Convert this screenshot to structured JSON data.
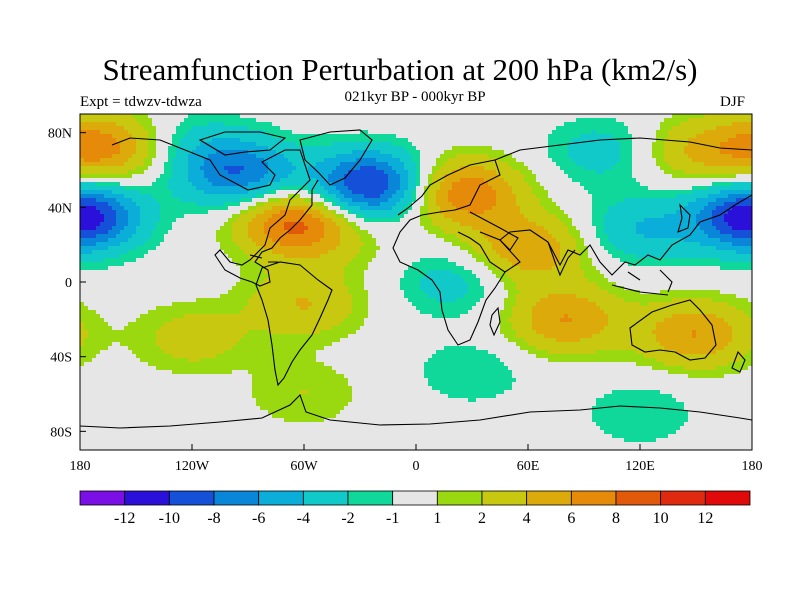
{
  "title": "Streamfunction Perturbation at 200 hPa (km2/s)",
  "subtitle": "021kyr BP - 000kyr BP",
  "left_label": "Expt = tdwzv-tdwza",
  "right_label": "DJF",
  "axes": {
    "lat_ticks": [
      "80N",
      "40N",
      "0",
      "40S",
      "80S"
    ],
    "lon_ticks": [
      "180",
      "120W",
      "60W",
      "0",
      "60E",
      "120E",
      "180"
    ]
  },
  "colorbar": {
    "labels": [
      "-12",
      "-10",
      "-8",
      "-6",
      "-4",
      "-2",
      "-1",
      "1",
      "2",
      "4",
      "6",
      "8",
      "10",
      "12"
    ],
    "colors": [
      "#7a10e6",
      "#2a10d8",
      "#1550d8",
      "#0a86d8",
      "#0aaed8",
      "#11c9c9",
      "#10d89a",
      "#e6e6e6",
      "#9ad810",
      "#c8c810",
      "#dcaa0a",
      "#e68a0a",
      "#e05a0a",
      "#e02a10",
      "#e00a0a"
    ]
  },
  "chart_data": {
    "type": "heatmap",
    "title": "Streamfunction Perturbation at 200 hPa (km2/s)",
    "xlabel": "",
    "ylabel": "",
    "xlim": [
      -180,
      180
    ],
    "ylim": [
      -90,
      90
    ],
    "levels": [
      -12,
      -10,
      -8,
      -6,
      -4,
      -2,
      -1,
      1,
      2,
      4,
      6,
      8,
      10,
      12
    ],
    "features": [
      {
        "lon": -168,
        "lat": 72,
        "value": 7
      },
      {
        "lon": -180,
        "lat": 35,
        "value": -6
      },
      {
        "lon": 180,
        "lat": 35,
        "value": -6
      },
      {
        "lon": -120,
        "lat": 75,
        "value": -2
      },
      {
        "lon": -95,
        "lat": 58,
        "value": -8
      },
      {
        "lon": -25,
        "lat": 52,
        "value": -11
      },
      {
        "lon": -65,
        "lat": 32,
        "value": 9
      },
      {
        "lon": -35,
        "lat": 20,
        "value": 1
      },
      {
        "lon": 25,
        "lat": 48,
        "value": 8
      },
      {
        "lon": 100,
        "lat": 70,
        "value": -3
      },
      {
        "lon": 150,
        "lat": 70,
        "value": 4
      },
      {
        "lon": 60,
        "lat": 18,
        "value": 6
      },
      {
        "lon": 120,
        "lat": 28,
        "value": -4
      },
      {
        "lon": 20,
        "lat": 0,
        "value": -3
      },
      {
        "lon": -60,
        "lat": -12,
        "value": 4
      },
      {
        "lon": -120,
        "lat": -30,
        "value": 3
      },
      {
        "lon": 80,
        "lat": -20,
        "value": 6
      },
      {
        "lon": 150,
        "lat": -28,
        "value": 6
      },
      {
        "lon": 30,
        "lat": -48,
        "value": -2
      },
      {
        "lon": -60,
        "lat": -60,
        "value": 2
      },
      {
        "lon": 120,
        "lat": -70,
        "value": -2
      }
    ]
  }
}
